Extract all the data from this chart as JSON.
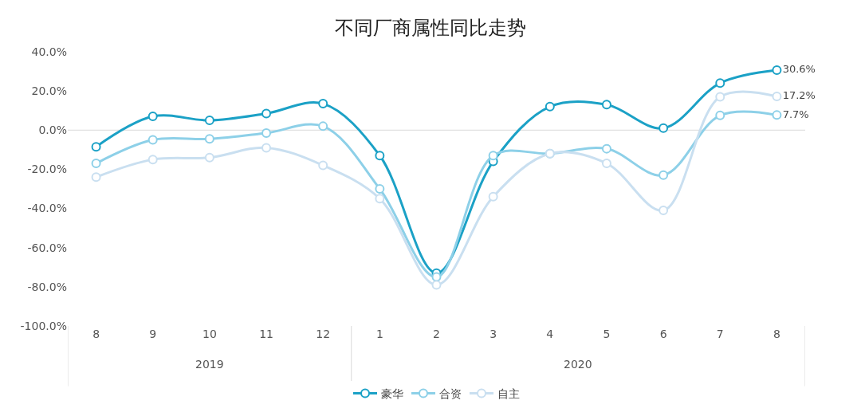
{
  "chart_data": {
    "type": "line",
    "title": "不同厂商属性同比走势",
    "categories": [
      "8",
      "9",
      "10",
      "11",
      "12",
      "1",
      "2",
      "3",
      "4",
      "5",
      "6",
      "7",
      "8"
    ],
    "series": [
      {
        "name": "豪华",
        "color": "#1ba1c6",
        "values": [
          -8.5,
          7,
          5,
          8.5,
          13.5,
          -13,
          -73,
          -16,
          12,
          13,
          1,
          24,
          30.6
        ],
        "value_labels": [
          null,
          null,
          null,
          null,
          null,
          null,
          null,
          null,
          null,
          null,
          null,
          null,
          "30.6%"
        ]
      },
      {
        "name": "合资",
        "color": "#8dd0e8",
        "values": [
          -17,
          -5,
          -4.5,
          -1.5,
          2,
          -30,
          -75,
          -13,
          -12,
          -9.5,
          -23,
          7.5,
          7.7
        ],
        "value_labels": [
          null,
          null,
          null,
          null,
          null,
          null,
          null,
          null,
          null,
          null,
          null,
          null,
          "7.7%"
        ]
      },
      {
        "name": "自主",
        "color": "#c9dff0",
        "values": [
          -24,
          -15,
          -14,
          -9,
          -18,
          -35,
          -79,
          -34,
          -12,
          -17,
          -41,
          17,
          17.2
        ],
        "value_labels": [
          null,
          null,
          null,
          null,
          null,
          null,
          null,
          null,
          null,
          null,
          null,
          null,
          "17.2%"
        ]
      }
    ],
    "annotations": [
      "2019",
      "2020"
    ],
    "ylim": [
      -100,
      40
    ],
    "yticks": [
      {
        "value": -100,
        "label": "-100.0%"
      },
      {
        "value": -80,
        "label": "-80.0%"
      },
      {
        "value": -60,
        "label": "-60.0%"
      },
      {
        "value": -40,
        "label": "-40.0%"
      },
      {
        "value": -20,
        "label": "-20.0%"
      },
      {
        "value": 0,
        "label": "0.0%"
      },
      {
        "value": 20,
        "label": "20.0%"
      },
      {
        "value": 40,
        "label": "40.0%"
      }
    ],
    "ref_lines": [
      {
        "axis": "y",
        "value": 0,
        "color": "#d9d9d9"
      }
    ],
    "grid": false,
    "legend": "bottom",
    "marker": "circle",
    "line_style": "solid"
  }
}
